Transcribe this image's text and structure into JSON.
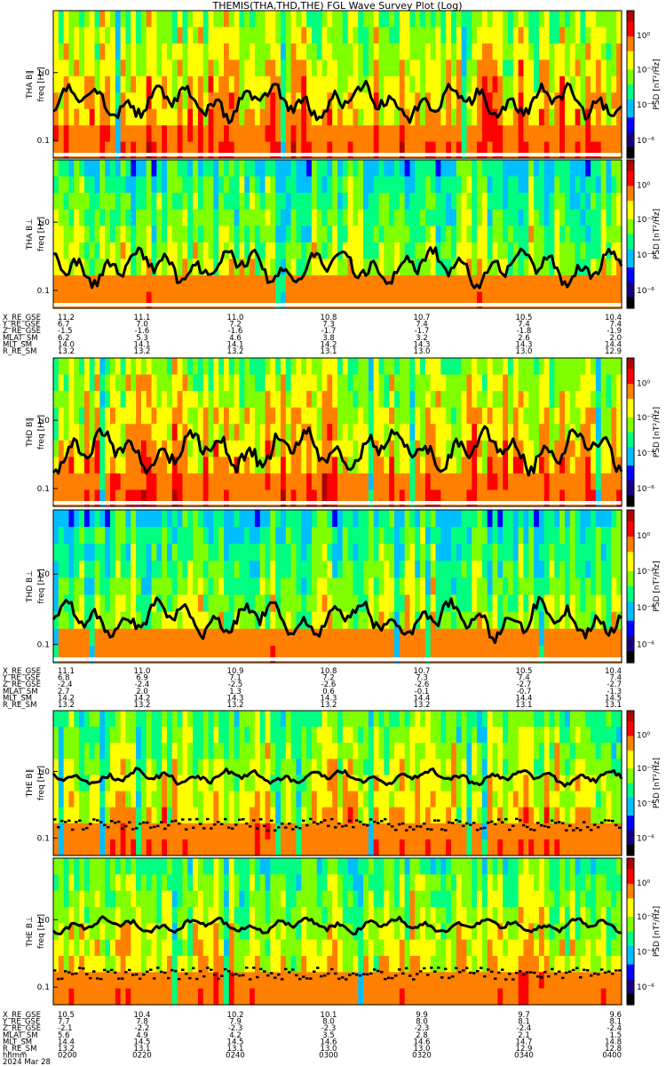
{
  "title": "THEMIS(THA,THD,THE) FGL Wave Survey Plot (Log)",
  "colors": {
    "colormap": [
      "#000000",
      "#1a0080",
      "#0000ff",
      "#00bfff",
      "#00ff80",
      "#80ff00",
      "#ffff00",
      "#ff8000",
      "#ff0000",
      "#b00000"
    ]
  },
  "chart_data": {
    "type": "heatmap",
    "freq_ticks": [
      "0.1",
      "1.0"
    ],
    "psd_ticks": [
      "10⁰",
      "10⁻²",
      "10⁻⁴",
      "10⁻⁶"
    ],
    "colorbar_label": "PSD [nT²/Hz]",
    "panels": [
      {
        "id": "tha_bll",
        "ylabel": "THA B∥",
        "unit": "freq [Hz]",
        "spectral": "dense",
        "line_level": 0.62,
        "line_amp": 0.12,
        "dots": false
      },
      {
        "id": "tha_bperp",
        "ylabel": "THA B⊥",
        "unit": "freq [Hz]",
        "spectral": "sparse",
        "line_level": 0.72,
        "line_amp": 0.12,
        "dots": false
      },
      {
        "id": "thd_bll",
        "ylabel": "THD B∥",
        "unit": "freq [Hz]",
        "spectral": "dense",
        "line_level": 0.62,
        "line_amp": 0.14,
        "dots": false
      },
      {
        "id": "thd_bperp",
        "ylabel": "THD B⊥",
        "unit": "freq [Hz]",
        "spectral": "sparse",
        "line_level": 0.72,
        "line_amp": 0.12,
        "dots": false
      },
      {
        "id": "the_bll",
        "ylabel": "THE B∥",
        "unit": "freq [Hz]",
        "spectral": "medium",
        "line_level": 0.46,
        "line_amp": 0.05,
        "dots": true
      },
      {
        "id": "the_bperp",
        "ylabel": "THE B⊥",
        "unit": "freq [Hz]",
        "spectral": "medium",
        "line_level": 0.46,
        "line_amp": 0.05,
        "dots": true
      }
    ],
    "ephemeris_blocks": [
      {
        "labels": [
          "X_RE_GSE",
          "Y_RE_GSE",
          "Z_RE_GSE",
          "MLAT_SM",
          "MLT_SM",
          "R_RE_SM"
        ],
        "columns": [
          [
            "11.2",
            "6.7",
            "-1.5",
            "6.2",
            "14.0",
            "13.2"
          ],
          [
            "11.1",
            "7.0",
            "-1.6",
            "5.3",
            "14.1",
            "13.2"
          ],
          [
            "11.0",
            "7.2",
            "-1.6",
            "4.6",
            "14.1",
            "13.2"
          ],
          [
            "10.8",
            "7.3",
            "-1.7",
            "3.8",
            "14.2",
            "13.1"
          ],
          [
            "10.7",
            "7.4",
            "-1.7",
            "3.2",
            "14.3",
            "13.0"
          ],
          [
            "10.5",
            "7.4",
            "-1.8",
            "2.6",
            "14.3",
            "13.0"
          ],
          [
            "10.4",
            "7.4",
            "-1.9",
            "2.0",
            "14.4",
            "12.9"
          ]
        ]
      },
      {
        "labels": [
          "X_RE_GSE",
          "Y_RE_GSE",
          "Z_RE_GSE",
          "MLAT_SM",
          "MLT_SM",
          "R_RE_SM"
        ],
        "columns": [
          [
            "11.1",
            "6.8",
            "-2.4",
            "2.7",
            "14.2",
            "13.2"
          ],
          [
            "11.0",
            "6.9",
            "-2.4",
            "2.0",
            "14.2",
            "13.2"
          ],
          [
            "10.9",
            "7.1",
            "-2.5",
            "1.3",
            "14.3",
            "13.2"
          ],
          [
            "10.8",
            "7.2",
            "-2.6",
            "0.6",
            "14.3",
            "13.2"
          ],
          [
            "10.7",
            "7.3",
            "-2.6",
            "-0.1",
            "14.4",
            "13.2"
          ],
          [
            "10.5",
            "7.4",
            "-2.7",
            "-0.7",
            "14.4",
            "13.1"
          ],
          [
            "10.4",
            "7.4",
            "-2.7",
            "-1.3",
            "14.5",
            "13.1"
          ]
        ]
      },
      {
        "labels": [
          "X_RE_GSE",
          "Y_RE_GSE",
          "Z_RE_GSE",
          "MLAT_SM",
          "MLT_SM",
          "R_RE_SM",
          "hhmm",
          "2024 Mar 28"
        ],
        "columns": [
          [
            "10.5",
            "7.7",
            "-2.1",
            "5.6",
            "14.4",
            "13.2",
            "0200"
          ],
          [
            "10.4",
            "7.8",
            "-2.2",
            "4.9",
            "14.5",
            "13.1",
            "0220"
          ],
          [
            "10.2",
            "7.9",
            "-2.3",
            "4.2",
            "14.5",
            "13.1",
            "0240"
          ],
          [
            "10.1",
            "8.0",
            "-2.3",
            "3.5",
            "14.6",
            "13.0",
            "0300"
          ],
          [
            "9.9",
            "8.0",
            "-2.3",
            "2.8",
            "14.6",
            "13.0",
            "0320"
          ],
          [
            "9.7",
            "8.1",
            "-2.4",
            "2.1",
            "14.7",
            "12.9",
            "0340"
          ],
          [
            "9.6",
            "8.1",
            "-2.4",
            "1.5",
            "14.8",
            "12.8",
            "0400"
          ]
        ]
      }
    ]
  }
}
